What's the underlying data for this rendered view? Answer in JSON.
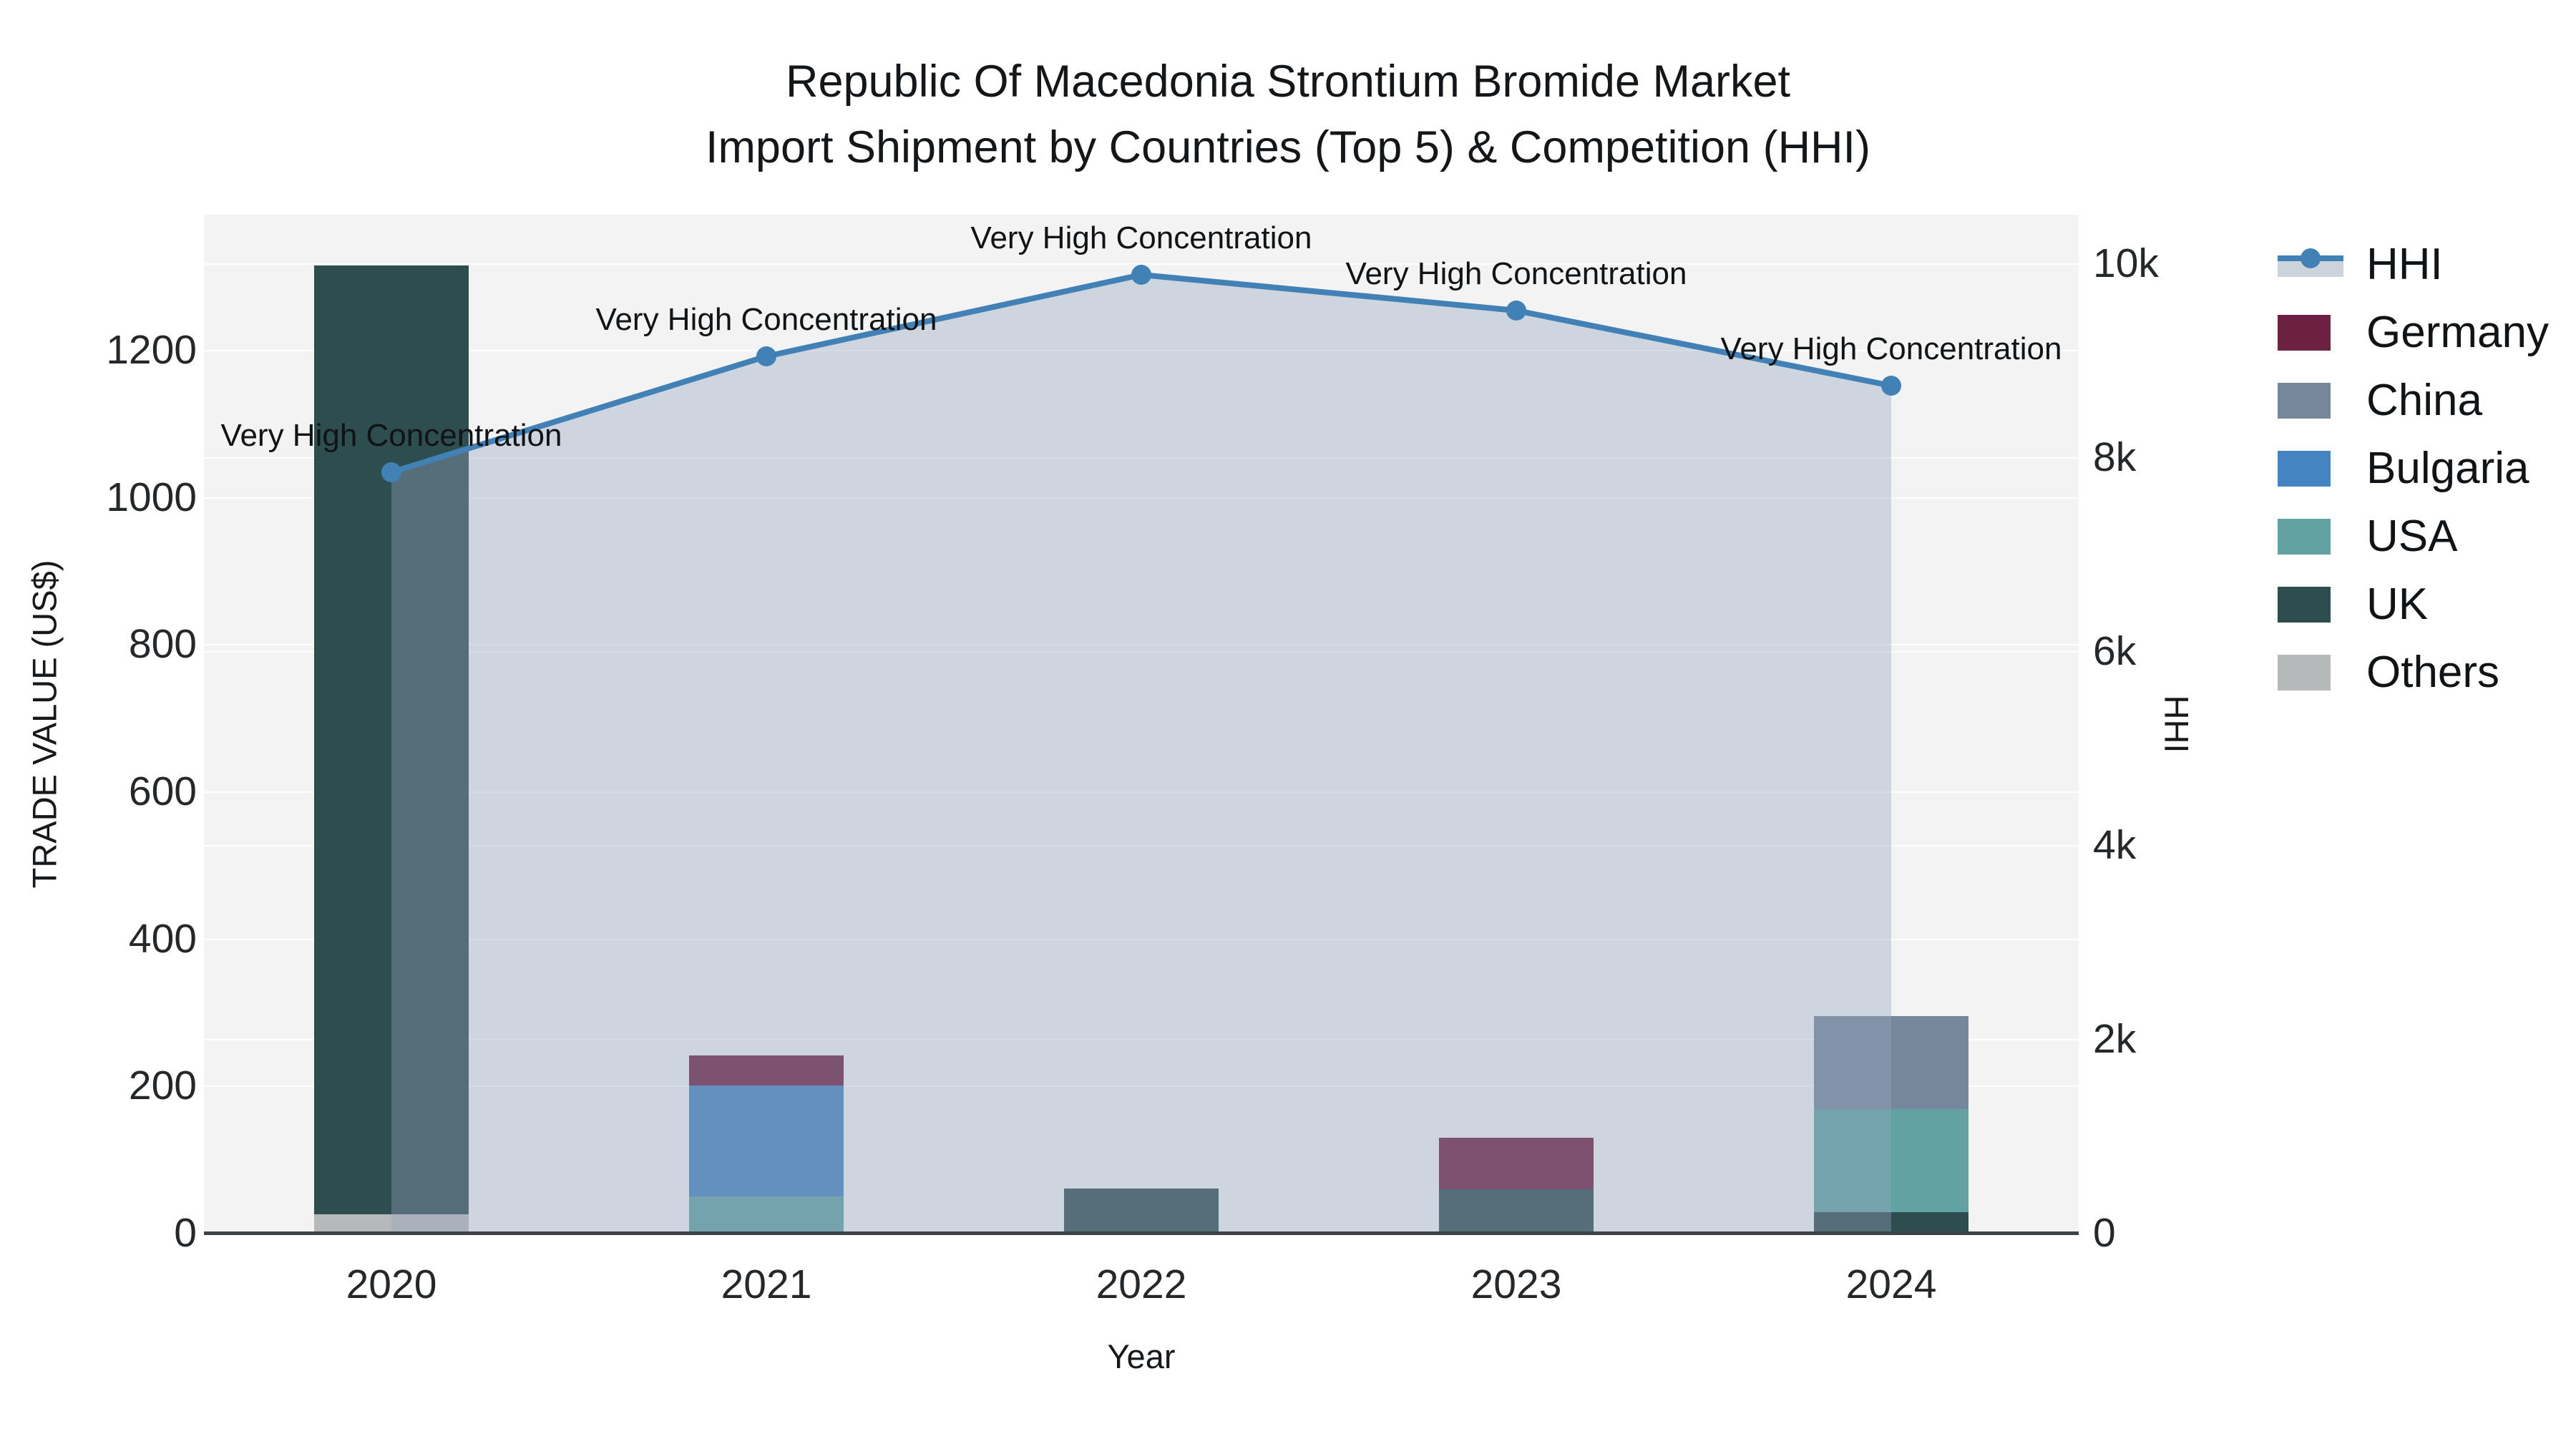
{
  "title": {
    "line1": "Republic Of Macedonia Strontium Bromide Market",
    "line2": "Import Shipment by Countries (Top 5) & Competition (HHI)"
  },
  "x_axis": {
    "title": "Year",
    "ticks": [
      "2020",
      "2021",
      "2022",
      "2023",
      "2024"
    ]
  },
  "y_left_axis": {
    "title": "TRADE VALUE (US$)",
    "ticks": [
      "0",
      "200",
      "400",
      "600",
      "800",
      "1000",
      "1200"
    ],
    "tick_values": [
      0,
      200,
      400,
      600,
      800,
      1000,
      1200
    ],
    "range_max": 1384
  },
  "y_right_axis": {
    "title": "HHI",
    "ticks": [
      "0",
      "2k",
      "4k",
      "6k",
      "8k",
      "10k"
    ],
    "tick_values": [
      0,
      2000,
      4000,
      6000,
      8000,
      10000
    ],
    "range_max": 10500
  },
  "legend": {
    "items": [
      {
        "label": "HHI",
        "type": "line",
        "color": "#4181b5"
      },
      {
        "label": "Germany",
        "type": "swatch",
        "color": "#6c2042"
      },
      {
        "label": "China",
        "type": "swatch",
        "color": "#76879b"
      },
      {
        "label": "Bulgaria",
        "type": "swatch",
        "color": "#4484c0"
      },
      {
        "label": "USA",
        "type": "swatch",
        "color": "#62a2a3"
      },
      {
        "label": "UK",
        "type": "swatch",
        "color": "#2e4d4f"
      },
      {
        "label": "Others",
        "type": "swatch",
        "color": "#b6b9b9"
      }
    ]
  },
  "annotation_text": "Very High Concentration",
  "chart_data": {
    "type": [
      "bar",
      "line"
    ],
    "title": "Republic Of Macedonia Strontium Bromide Market Import Shipment by Countries (Top 5) & Competition (HHI)",
    "xlabel": "Year",
    "ylabel_left": "TRADE VALUE (US$)",
    "ylabel_right": "HHI",
    "categories": [
      "2020",
      "2021",
      "2022",
      "2023",
      "2024"
    ],
    "bar_mode": "stacked",
    "stack_order_bottom_to_top": [
      "Others",
      "UK",
      "USA",
      "Bulgaria",
      "China",
      "Germany"
    ],
    "series": [
      {
        "name": "Germany",
        "color": "#6c2042",
        "values": [
          0,
          41,
          0,
          70,
          0
        ]
      },
      {
        "name": "China",
        "color": "#76879b",
        "values": [
          0,
          0,
          0,
          0,
          127
        ]
      },
      {
        "name": "Bulgaria",
        "color": "#4484c0",
        "values": [
          0,
          150,
          0,
          0,
          0
        ]
      },
      {
        "name": "USA",
        "color": "#62a2a3",
        "values": [
          0,
          50,
          0,
          0,
          140
        ]
      },
      {
        "name": "UK",
        "color": "#2e4d4f",
        "values": [
          1290,
          0,
          60,
          59,
          28
        ]
      },
      {
        "name": "Others",
        "color": "#b6b9b9",
        "values": [
          25,
          0,
          0,
          0,
          0
        ]
      }
    ],
    "hhi_series": {
      "name": "HHI",
      "values": [
        7840,
        9040,
        9880,
        9510,
        8740
      ],
      "line_color": "#4181b5",
      "area_fill_color": "#96a5be",
      "area_fill_opacity": 0.38,
      "point_annotations": [
        "Very High Concentration",
        "Very High Concentration",
        "Very High Concentration",
        "Very High Concentration",
        "Very High Concentration"
      ]
    },
    "ylim_left": [
      0,
      1384
    ],
    "ylim_right": [
      0,
      10500
    ],
    "grid": true,
    "legend_position": "right",
    "plot_background": "#f3f3f3"
  }
}
